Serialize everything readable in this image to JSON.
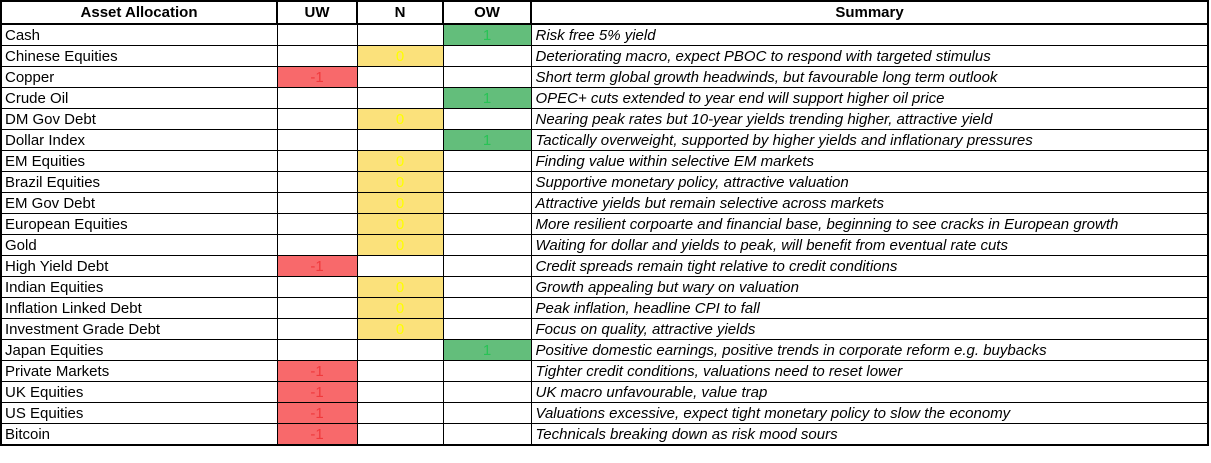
{
  "header": {
    "asset": "Asset Allocation",
    "uw": "UW",
    "n": "N",
    "ow": "OW",
    "summary": "Summary"
  },
  "colors": {
    "underweight_fill": "#F8696B",
    "underweight_text": "#F0393C",
    "neutral_fill": "#FBE17B",
    "neutral_text": "#FFFF00",
    "overweight_fill": "#63BE7B",
    "overweight_text": "#28C355",
    "grid_border": "#000000"
  },
  "rows": [
    {
      "asset": "Cash",
      "rating": "OW",
      "value": "1",
      "summary": "Risk free 5% yield"
    },
    {
      "asset": "Chinese Equities",
      "rating": "N",
      "value": "0",
      "summary": "Deteriorating macro, expect PBOC to respond with targeted stimulus"
    },
    {
      "asset": "Copper",
      "rating": "UW",
      "value": "-1",
      "summary": "Short term global growth headwinds, but favourable long term outlook"
    },
    {
      "asset": "Crude Oil",
      "rating": "OW",
      "value": "1",
      "summary": "OPEC+ cuts extended to year end will support higher oil price"
    },
    {
      "asset": "DM Gov Debt",
      "rating": "N",
      "value": "0",
      "summary": "Nearing peak rates but 10-year yields trending higher, attractive yield"
    },
    {
      "asset": "Dollar Index",
      "rating": "OW",
      "value": "1",
      "summary": "Tactically overweight, supported by higher yields and inflationary pressures"
    },
    {
      "asset": "EM Equities",
      "rating": "N",
      "value": "0",
      "summary": "Finding value within selective EM markets"
    },
    {
      "asset": "Brazil Equities",
      "rating": "N",
      "value": "0",
      "summary": "Supportive monetary policy, attractive valuation"
    },
    {
      "asset": "EM Gov Debt",
      "rating": "N",
      "value": "0",
      "summary": "Attractive yields but remain selective across markets"
    },
    {
      "asset": "European Equities",
      "rating": "N",
      "value": "0",
      "summary": "More resilient corpoarte and financial base, beginning to see cracks in European growth"
    },
    {
      "asset": "Gold",
      "rating": "N",
      "value": "0",
      "summary": "Waiting for dollar and yields to peak, will benefit from eventual rate cuts"
    },
    {
      "asset": "High Yield Debt",
      "rating": "UW",
      "value": "-1",
      "summary": "Credit spreads remain tight relative to credit conditions"
    },
    {
      "asset": "Indian Equities",
      "rating": "N",
      "value": "0",
      "summary": "Growth appealing but wary on valuation"
    },
    {
      "asset": "Inflation Linked Debt",
      "rating": "N",
      "value": "0",
      "summary": "Peak inflation, headline CPI to fall"
    },
    {
      "asset": "Investment Grade Debt",
      "rating": "N",
      "value": "0",
      "summary": "Focus on quality, attractive yields"
    },
    {
      "asset": "Japan Equities",
      "rating": "OW",
      "value": "1",
      "summary": "Positive domestic earnings, positive trends in corporate reform e.g. buybacks"
    },
    {
      "asset": "Private Markets",
      "rating": "UW",
      "value": "-1",
      "summary": "Tighter credit conditions, valuations need to reset lower"
    },
    {
      "asset": "UK Equities",
      "rating": "UW",
      "value": "-1",
      "summary": "UK macro unfavourable, value trap"
    },
    {
      "asset": "US Equities",
      "rating": "UW",
      "value": "-1",
      "summary": "Valuations excessive, expect tight monetary policy to slow the economy"
    },
    {
      "asset": "Bitcoin",
      "rating": "UW",
      "value": "-1",
      "summary": "Technicals breaking down as risk mood sours"
    }
  ]
}
